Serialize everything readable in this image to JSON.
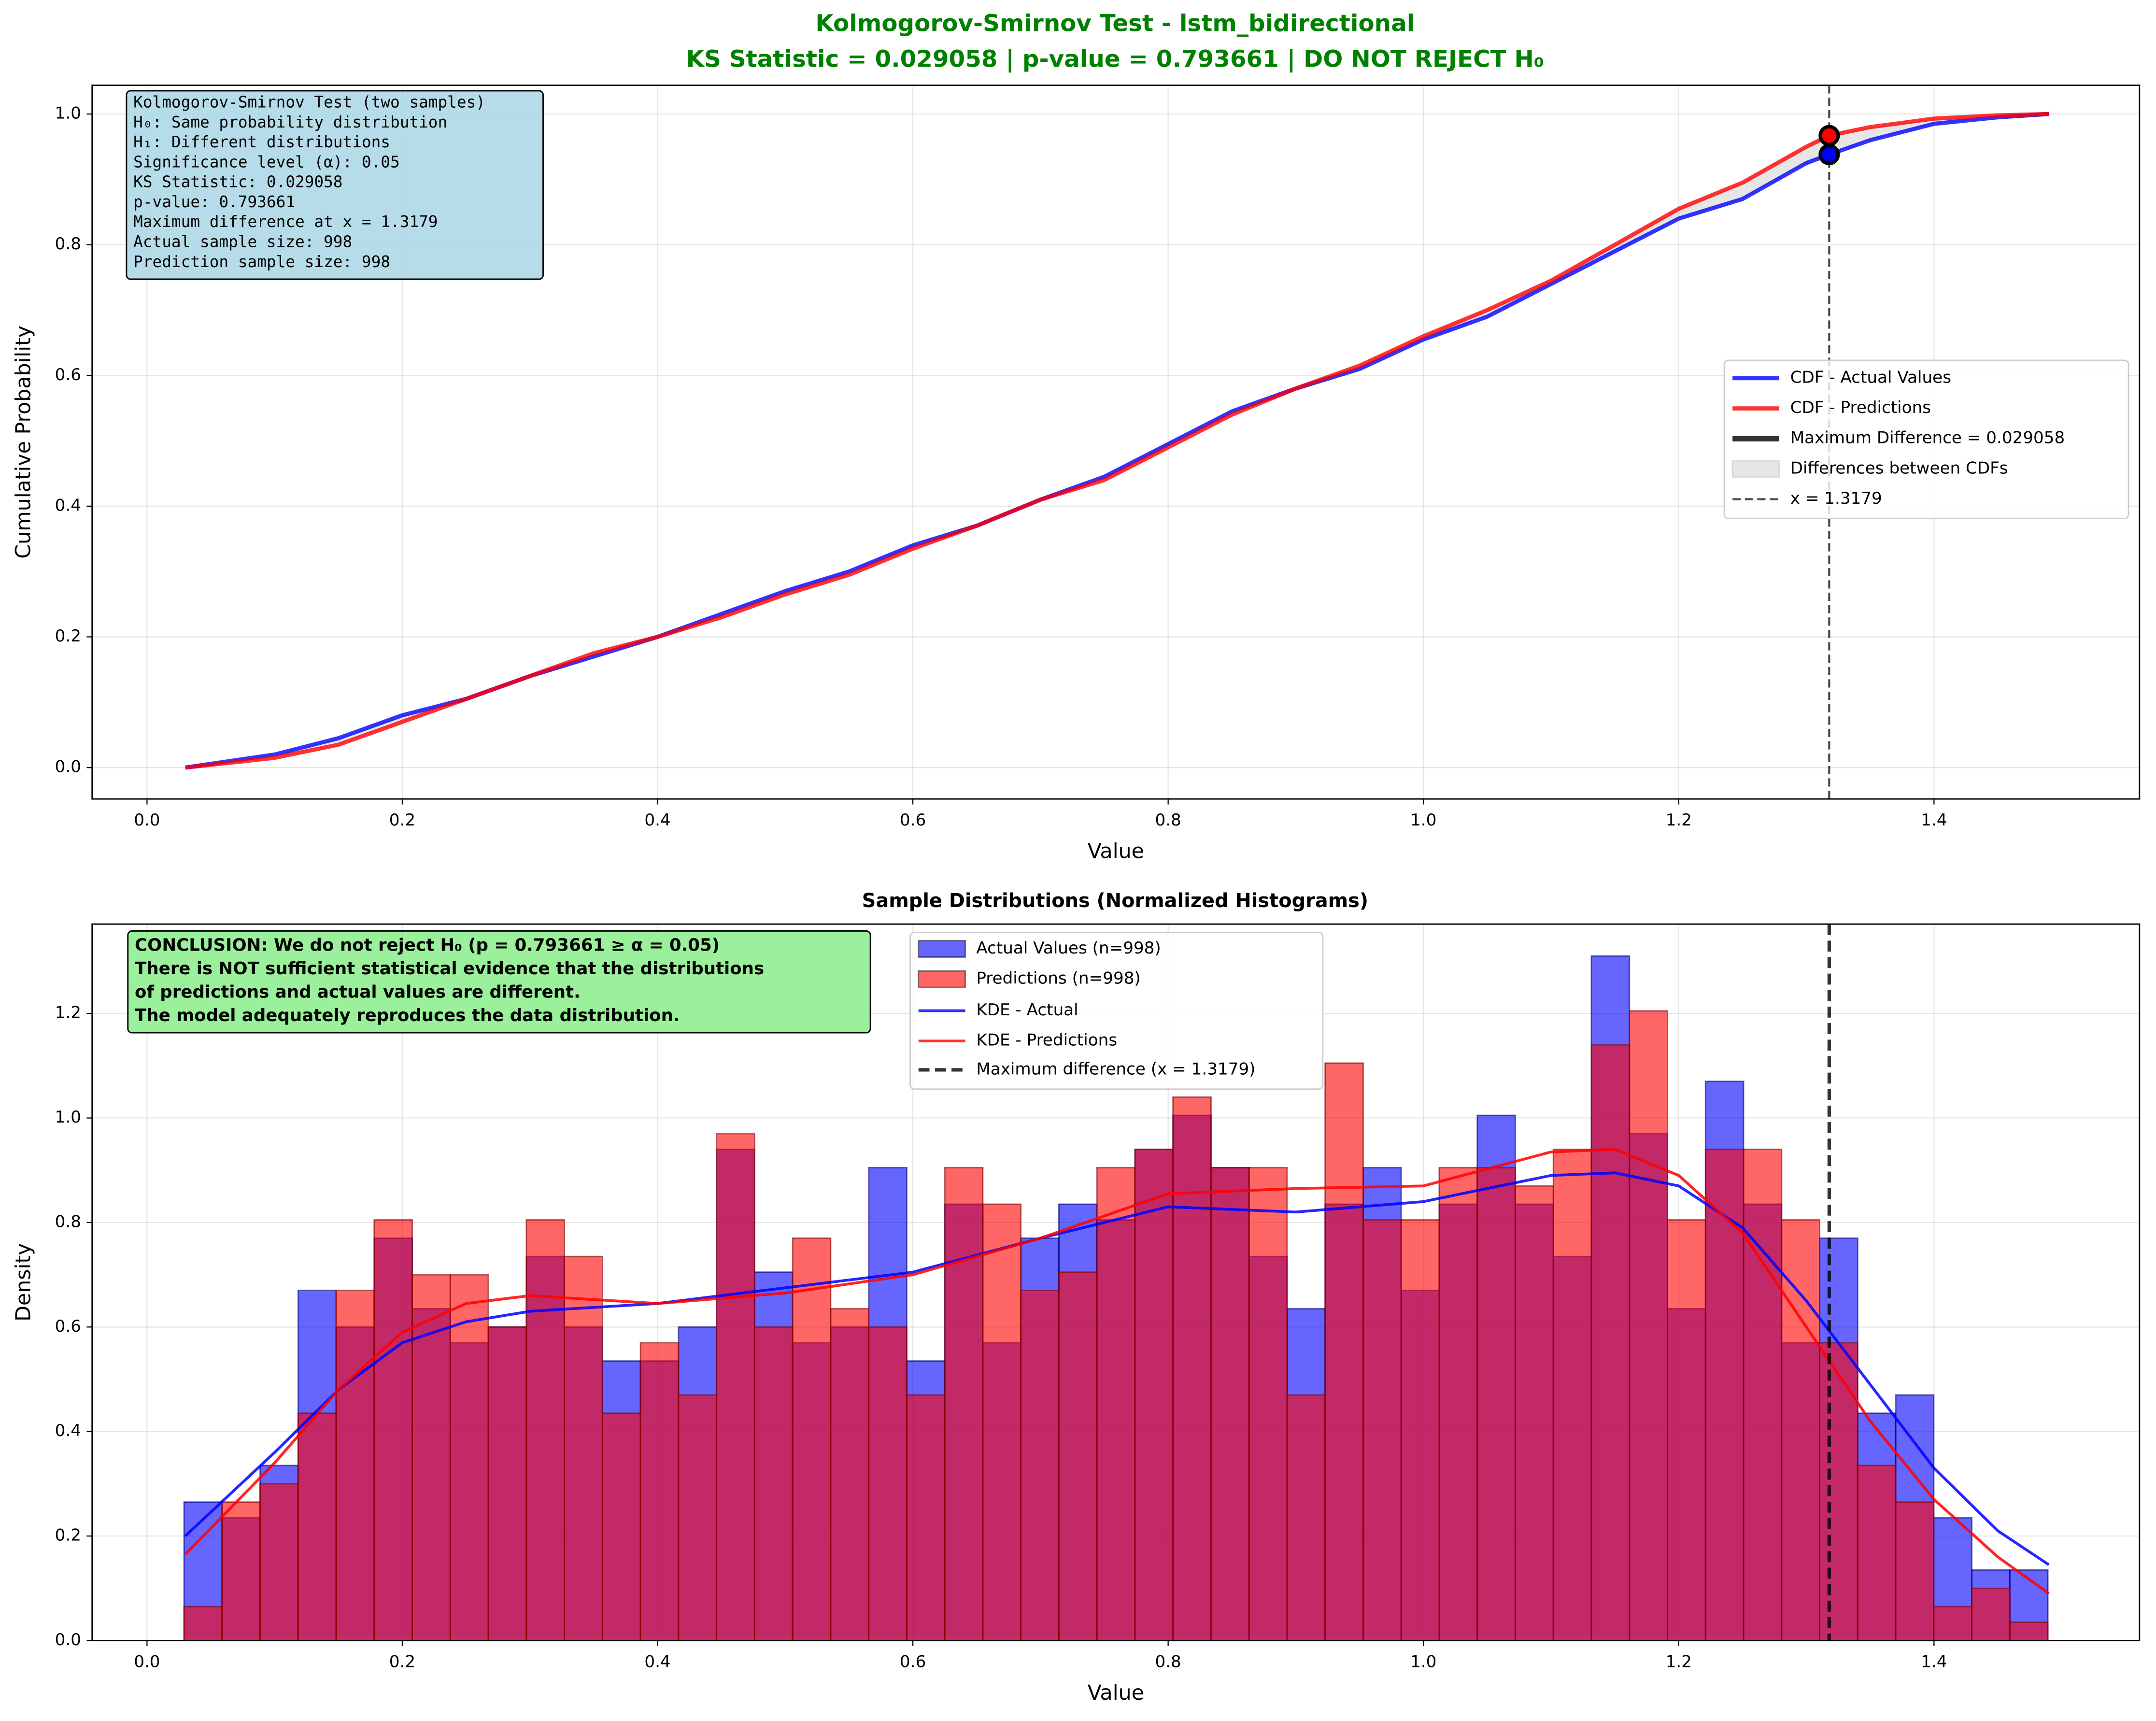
{
  "chart_data": [
    {
      "type": "line",
      "title": "Kolmogorov-Smirnov Test - lstm_bidirectional",
      "subtitle": "KS Statistic = 0.029058 | p-value = 0.793661 | DO NOT REJECT H₀",
      "xlabel": "Value",
      "ylabel": "Cumulative Probability",
      "xlim": [
        -0.043,
        1.561
      ],
      "ylim": [
        -0.048,
        1.044
      ],
      "xticks": [
        {
          "value": 0,
          "label": "0.0"
        },
        0.2,
        0.4,
        0.6,
        0.8,
        {
          "value": 1,
          "label": "1.0"
        },
        1.2,
        1.4
      ],
      "yticks": [
        {
          "value": 0,
          "label": "0.0"
        },
        0.2,
        0.4,
        0.6,
        0.8,
        {
          "value": 1,
          "label": "1.0"
        }
      ],
      "grid": true,
      "x": [
        0.03,
        0.1,
        0.15,
        0.2,
        0.25,
        0.3,
        0.35,
        0.4,
        0.45,
        0.5,
        0.55,
        0.6,
        0.65,
        0.7,
        0.75,
        0.8,
        0.85,
        0.9,
        0.95,
        1.0,
        1.05,
        1.1,
        1.15,
        1.2,
        1.25,
        1.3,
        1.3179,
        1.35,
        1.4,
        1.45,
        1.49
      ],
      "series": [
        {
          "name": "CDF - Actual Values",
          "color": "#0000ff",
          "values": [
            0,
            0.02,
            0.045,
            0.08,
            0.105,
            0.14,
            0.17,
            0.2,
            0.235,
            0.27,
            0.3,
            0.34,
            0.37,
            0.41,
            0.445,
            0.495,
            0.545,
            0.58,
            0.61,
            0.655,
            0.69,
            0.74,
            0.79,
            0.84,
            0.87,
            0.925,
            0.938,
            0.96,
            0.985,
            0.995,
            1.0
          ]
        },
        {
          "name": "CDF - Predictions",
          "color": "#ff0000",
          "values": [
            0,
            0.015,
            0.035,
            0.07,
            0.105,
            0.14,
            0.175,
            0.2,
            0.23,
            0.265,
            0.295,
            0.335,
            0.37,
            0.41,
            0.44,
            0.49,
            0.54,
            0.58,
            0.615,
            0.66,
            0.7,
            0.745,
            0.8,
            0.855,
            0.895,
            0.95,
            0.967,
            0.98,
            0.993,
            0.998,
            1.0
          ]
        }
      ],
      "max_diff": {
        "label": "Maximum Difference = 0.029058",
        "x": 1.3179,
        "values": [
          0.938,
          0.967
        ]
      },
      "fill_label": "Differences between CDFs",
      "vline": 1.3179,
      "vline_label": "x = 1.3179",
      "legend": "center right",
      "annotation": [
        "Kolmogorov-Smirnov Test (two samples)",
        "H₀: Same probability distribution",
        "H₁: Different distributions",
        "Significance level (α): 0.05",
        "KS Statistic: 0.029058",
        "p-value: 0.793661",
        "Maximum difference at x = 1.3179",
        "Actual sample size: 998",
        "Prediction sample size: 998"
      ]
    },
    {
      "type": "histogram",
      "title": "Sample Distributions (Normalized Histograms)",
      "xlabel": "Value",
      "ylabel": "Density",
      "xlim": [
        -0.043,
        1.561
      ],
      "ylim": [
        0,
        1.371
      ],
      "xticks": [
        {
          "value": 0,
          "label": "0.0"
        },
        0.2,
        0.4,
        0.6,
        0.8,
        {
          "value": 1,
          "label": "1.0"
        },
        1.2,
        1.4
      ],
      "yticks": [
        {
          "value": 0,
          "label": "0.0"
        },
        0.2,
        0.4,
        0.6,
        0.8,
        {
          "value": 1,
          "label": "1.0"
        },
        1.2
      ],
      "grid": true,
      "bins": [
        0.029,
        0.0588,
        0.0886,
        0.1184,
        0.1482,
        0.178,
        0.2078,
        0.2376,
        0.2674,
        0.2972,
        0.327,
        0.3568,
        0.3866,
        0.4164,
        0.4462,
        0.476,
        0.5058,
        0.5356,
        0.5654,
        0.5952,
        0.625,
        0.6548,
        0.6846,
        0.7144,
        0.7442,
        0.774,
        0.8038,
        0.8336,
        0.8634,
        0.8932,
        0.923,
        0.9528,
        0.9826,
        1.0124,
        1.0422,
        1.072,
        1.1018,
        1.1316,
        1.1614,
        1.1912,
        1.221,
        1.2508,
        1.2806,
        1.3104,
        1.3402,
        1.37,
        1.3998,
        1.4296,
        1.4594,
        1.4892
      ],
      "series": [
        {
          "name": "Actual Values (n=998)",
          "color": "#0000ff",
          "values": [
            0.265,
            0.235,
            0.335,
            0.67,
            0.6,
            0.77,
            0.635,
            0.57,
            0.6,
            0.735,
            0.6,
            0.535,
            0.535,
            0.6,
            0.94,
            0.705,
            0.57,
            0.6,
            0.905,
            0.535,
            0.835,
            0.57,
            0.77,
            0.835,
            0.805,
            0.94,
            1.005,
            0.905,
            0.735,
            0.635,
            0.835,
            0.905,
            0.67,
            0.835,
            1.005,
            0.835,
            0.735,
            1.31,
            0.97,
            0.635,
            1.07,
            0.835,
            0.57,
            0.77,
            0.435,
            0.47,
            0.235,
            0.135,
            0.135
          ]
        },
        {
          "name": "Predictions (n=998)",
          "color": "#ff0000",
          "values": [
            0.065,
            0.265,
            0.3,
            0.435,
            0.67,
            0.805,
            0.7,
            0.7,
            0.6,
            0.805,
            0.735,
            0.435,
            0.57,
            0.47,
            0.97,
            0.6,
            0.77,
            0.635,
            0.6,
            0.47,
            0.905,
            0.835,
            0.67,
            0.705,
            0.905,
            0.94,
            1.04,
            0.905,
            0.905,
            0.47,
            1.105,
            0.805,
            0.805,
            0.905,
            0.905,
            0.87,
            0.94,
            1.14,
            1.205,
            0.805,
            0.94,
            0.94,
            0.805,
            0.57,
            0.335,
            0.265,
            0.065,
            0.1,
            0.035
          ]
        }
      ],
      "kde": {
        "x": [
          0.03,
          0.1,
          0.15,
          0.2,
          0.25,
          0.3,
          0.4,
          0.5,
          0.6,
          0.7,
          0.8,
          0.9,
          1.0,
          1.1,
          1.15,
          1.2,
          1.25,
          1.3,
          1.35,
          1.4,
          1.45,
          1.49
        ],
        "series": [
          {
            "name": "KDE - Actual",
            "color": "#0000ff",
            "values": [
              0.2,
              0.36,
              0.48,
              0.57,
              0.61,
              0.63,
              0.645,
              0.675,
              0.705,
              0.77,
              0.83,
              0.82,
              0.84,
              0.89,
              0.895,
              0.87,
              0.79,
              0.65,
              0.49,
              0.33,
              0.21,
              0.145
            ]
          },
          {
            "name": "KDE - Predictions",
            "color": "#ff0000",
            "values": [
              0.165,
              0.34,
              0.48,
              0.59,
              0.645,
              0.66,
              0.645,
              0.665,
              0.7,
              0.77,
              0.855,
              0.865,
              0.87,
              0.935,
              0.94,
              0.89,
              0.78,
              0.6,
              0.42,
              0.27,
              0.16,
              0.09
            ]
          }
        ]
      },
      "vline": 1.3179,
      "vline_label": "Maximum difference (x = 1.3179)",
      "legend": "upper center",
      "annotation": [
        "CONCLUSION: We do not reject H₀ (p = 0.793661 ≥ α = 0.05)",
        "There is NOT sufficient statistical evidence that the distributions",
        "of predictions and actual values are different.",
        "The model adequately reproduces the data distribution."
      ]
    }
  ]
}
